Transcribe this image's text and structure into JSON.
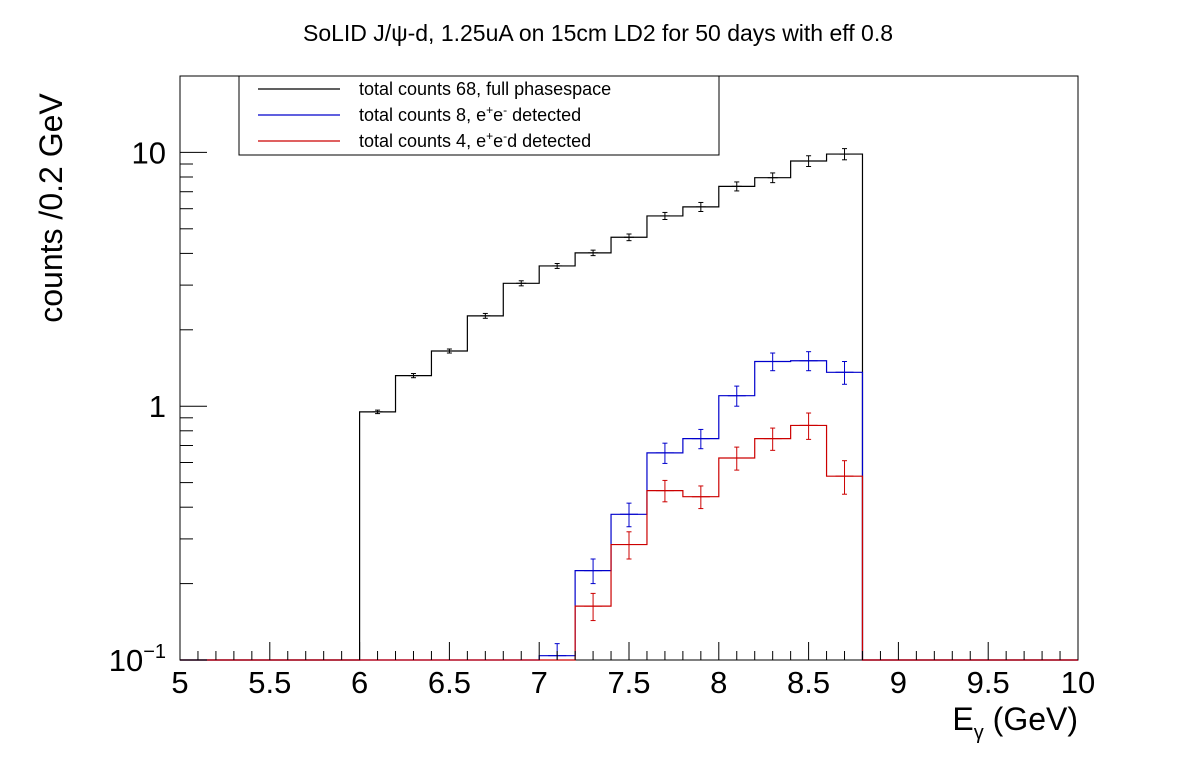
{
  "chart_data": {
    "type": "histogram",
    "title": "SoLID J/ψ-d, 1.25uA on 15cm LD2 for 50 days with eff 0.8",
    "ylabel": "counts /0.2 GeV",
    "xlabel": {
      "main": "E",
      "sub": "γ",
      "suffix": " (GeV)"
    },
    "x_ticks": [
      "5",
      "5.5",
      "6",
      "6.5",
      "7",
      "7.5",
      "8",
      "8.5",
      "9",
      "9.5",
      "10"
    ],
    "y_ticks": [
      {
        "value": 10,
        "label": "10"
      },
      {
        "value": 1,
        "label": "1"
      },
      {
        "value": 0.1,
        "label": "10",
        "exp": "−1"
      }
    ],
    "xlim": [
      5,
      10
    ],
    "ylim": [
      0.1,
      20
    ],
    "y_log": true,
    "bin_width": 0.2,
    "grid": false,
    "legend_position": "top-left",
    "series": [
      {
        "name": "total counts 68, full phasespace",
        "legend_parts": [
          {
            "t": "total counts 68, full phasespace"
          }
        ],
        "color": "#000000",
        "bins": [
          {
            "x": 6.0,
            "y": 0.95,
            "err": 0.015
          },
          {
            "x": 6.2,
            "y": 1.32,
            "err": 0.025
          },
          {
            "x": 6.4,
            "y": 1.65,
            "err": 0.03
          },
          {
            "x": 6.6,
            "y": 2.27,
            "err": 0.05
          },
          {
            "x": 6.8,
            "y": 3.05,
            "err": 0.07
          },
          {
            "x": 7.0,
            "y": 3.57,
            "err": 0.08
          },
          {
            "x": 7.2,
            "y": 4.02,
            "err": 0.1
          },
          {
            "x": 7.4,
            "y": 4.63,
            "err": 0.14
          },
          {
            "x": 7.6,
            "y": 5.62,
            "err": 0.18
          },
          {
            "x": 7.8,
            "y": 6.1,
            "err": 0.25
          },
          {
            "x": 8.0,
            "y": 7.35,
            "err": 0.3
          },
          {
            "x": 8.2,
            "y": 7.95,
            "err": 0.35
          },
          {
            "x": 8.4,
            "y": 9.25,
            "err": 0.45
          },
          {
            "x": 8.6,
            "y": 9.85,
            "err": 0.5
          }
        ]
      },
      {
        "name": "total counts 8, e+e- detected",
        "legend_parts": [
          {
            "t": "total counts 8, e"
          },
          {
            "t": "+",
            "sup": true
          },
          {
            "t": "e"
          },
          {
            "t": "-",
            "sup": true
          },
          {
            "t": " detected"
          }
        ],
        "color": "#0000cc",
        "bins": [
          {
            "x": 7.0,
            "y": 0.104,
            "err": 0.012
          },
          {
            "x": 7.2,
            "y": 0.225,
            "err": 0.025
          },
          {
            "x": 7.4,
            "y": 0.375,
            "err": 0.04
          },
          {
            "x": 7.6,
            "y": 0.655,
            "err": 0.06
          },
          {
            "x": 7.8,
            "y": 0.745,
            "err": 0.065
          },
          {
            "x": 8.0,
            "y": 1.1,
            "err": 0.1
          },
          {
            "x": 8.2,
            "y": 1.5,
            "err": 0.12
          },
          {
            "x": 8.4,
            "y": 1.51,
            "err": 0.13
          },
          {
            "x": 8.6,
            "y": 1.36,
            "err": 0.14
          }
        ]
      },
      {
        "name": "total counts 4, e+e-d detected",
        "legend_parts": [
          {
            "t": "total counts 4, e"
          },
          {
            "t": "+",
            "sup": true
          },
          {
            "t": "e"
          },
          {
            "t": "-",
            "sup": true
          },
          {
            "t": "d detected"
          }
        ],
        "color": "#cc0000",
        "bins": [
          {
            "x": 7.2,
            "y": 0.163,
            "err": 0.02
          },
          {
            "x": 7.4,
            "y": 0.285,
            "err": 0.035
          },
          {
            "x": 7.6,
            "y": 0.465,
            "err": 0.045
          },
          {
            "x": 7.8,
            "y": 0.44,
            "err": 0.045
          },
          {
            "x": 8.0,
            "y": 0.625,
            "err": 0.065
          },
          {
            "x": 8.2,
            "y": 0.745,
            "err": 0.075
          },
          {
            "x": 8.4,
            "y": 0.84,
            "err": 0.1
          },
          {
            "x": 8.6,
            "y": 0.53,
            "err": 0.08
          }
        ]
      }
    ]
  }
}
